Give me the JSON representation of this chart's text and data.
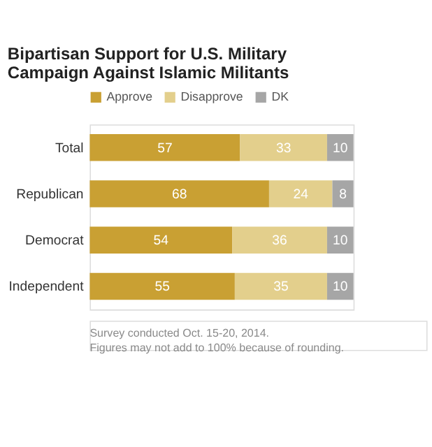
{
  "chart_data": {
    "type": "bar",
    "orientation": "horizontal",
    "stacked": true,
    "data_labels": true,
    "legend": "top",
    "title": "Bipartisan Support for U.S. Military Campaign Against Islamic Militants",
    "categories": [
      "Total",
      "Republican",
      "Democrat",
      "Independent"
    ],
    "series": [
      {
        "name": "Approve",
        "color": "#c9a033",
        "values": [
          57,
          68,
          54,
          55
        ]
      },
      {
        "name": "Disapprove",
        "color": "#e3cf8c",
        "values": [
          33,
          24,
          36,
          35
        ]
      },
      {
        "name": "DK",
        "color": "#a6a6a6",
        "values": [
          10,
          8,
          10,
          10
        ]
      }
    ],
    "annotations": [
      "Survey conducted Oct. 15-20, 2014.",
      "Figures may not add to 100% because of rounding."
    ]
  }
}
